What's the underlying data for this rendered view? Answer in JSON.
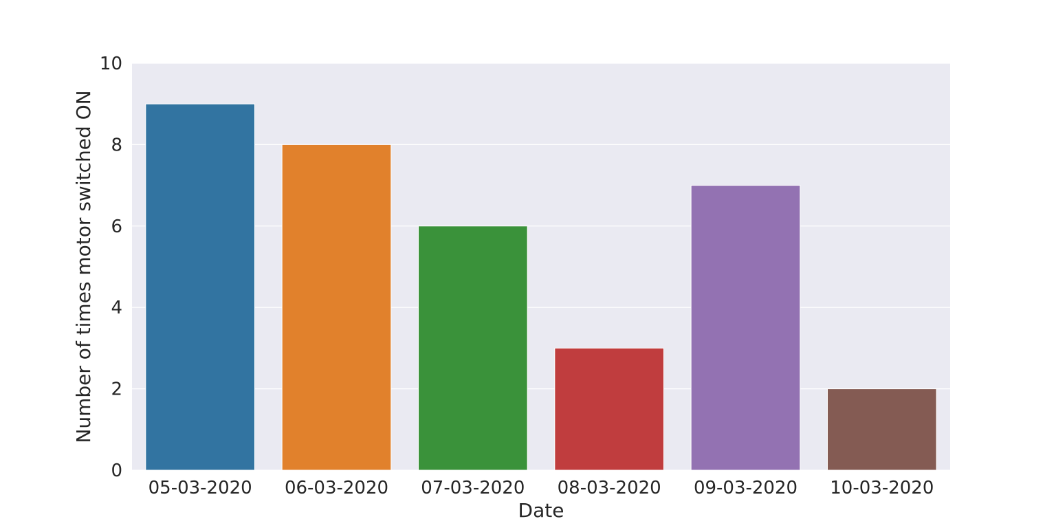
{
  "chart_data": {
    "type": "bar",
    "categories": [
      "05-03-2020",
      "06-03-2020",
      "07-03-2020",
      "08-03-2020",
      "09-03-2020",
      "10-03-2020"
    ],
    "values": [
      9,
      8,
      6,
      3,
      7,
      2
    ],
    "colors": [
      "#3274a1",
      "#e1812c",
      "#3a923a",
      "#c03d3e",
      "#9372b2",
      "#845b53"
    ],
    "xlabel": "Date",
    "ylabel": "Number of times motor switched ON",
    "ylim": [
      0,
      10
    ],
    "yticks": [
      0,
      2,
      4,
      6,
      8,
      10
    ],
    "grid": true,
    "background_color": "#eaeaf2",
    "grid_color": "#ffffff"
  }
}
